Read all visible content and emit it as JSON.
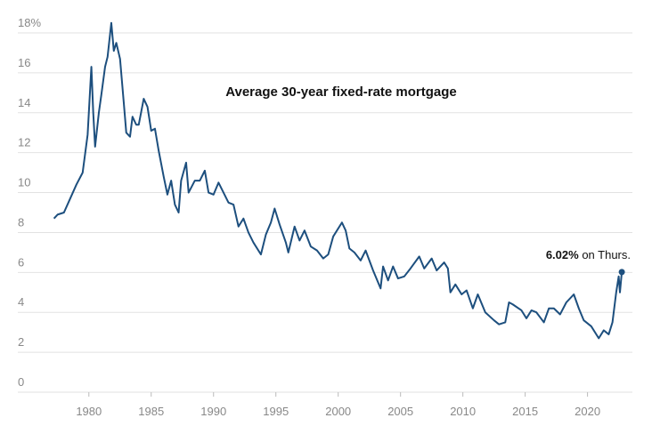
{
  "chart_data": {
    "type": "line",
    "title": "Average 30-year fixed-rate mortgage",
    "annotation_value": "6.02%",
    "annotation_text": "on Thurs.",
    "color": "#1d4f7e",
    "x": [
      1977.2,
      1977.5,
      1978.0,
      1978.5,
      1979.0,
      1979.5,
      1979.9,
      1980.2,
      1980.35,
      1980.5,
      1980.8,
      1981.0,
      1981.3,
      1981.5,
      1981.8,
      1982.0,
      1982.2,
      1982.5,
      1982.8,
      1983.0,
      1983.3,
      1983.5,
      1983.8,
      1984.0,
      1984.4,
      1984.7,
      1985.0,
      1985.3,
      1985.6,
      1986.0,
      1986.3,
      1986.6,
      1986.9,
      1987.2,
      1987.4,
      1987.8,
      1988.0,
      1988.5,
      1988.9,
      1989.3,
      1989.6,
      1990.0,
      1990.4,
      1990.8,
      1991.2,
      1991.6,
      1992.0,
      1992.4,
      1992.8,
      1993.2,
      1993.8,
      1994.2,
      1994.6,
      1994.9,
      1995.3,
      1995.8,
      1996.0,
      1996.5,
      1996.9,
      1997.3,
      1997.8,
      1998.3,
      1998.8,
      1999.2,
      1999.6,
      2000.3,
      2000.6,
      2000.9,
      2001.3,
      2001.8,
      2002.2,
      2002.8,
      2003.4,
      2003.6,
      2004.0,
      2004.4,
      2004.8,
      2005.3,
      2005.8,
      2006.5,
      2006.9,
      2007.5,
      2007.9,
      2008.5,
      2008.8,
      2009.0,
      2009.4,
      2009.9,
      2010.3,
      2010.8,
      2011.2,
      2011.8,
      2012.5,
      2012.9,
      2013.4,
      2013.7,
      2014.0,
      2014.7,
      2015.1,
      2015.5,
      2015.9,
      2016.5,
      2016.9,
      2017.3,
      2017.8,
      2018.3,
      2018.9,
      2019.3,
      2019.7,
      2020.3,
      2020.9,
      2021.3,
      2021.7,
      2022.0,
      2022.3,
      2022.5,
      2022.6,
      2022.75
    ],
    "values": [
      8.7,
      8.9,
      9.0,
      9.7,
      10.4,
      11.0,
      12.9,
      16.3,
      14.0,
      12.3,
      14.0,
      14.9,
      16.3,
      16.8,
      18.5,
      17.1,
      17.5,
      16.7,
      14.5,
      13.0,
      12.8,
      13.8,
      13.4,
      13.4,
      14.7,
      14.3,
      13.1,
      13.2,
      12.1,
      10.8,
      9.9,
      10.6,
      9.4,
      9.0,
      10.6,
      11.5,
      10.0,
      10.6,
      10.6,
      11.1,
      10.0,
      9.9,
      10.5,
      10.0,
      9.5,
      9.4,
      8.3,
      8.7,
      8.0,
      7.5,
      6.9,
      7.9,
      8.5,
      9.2,
      8.4,
      7.5,
      7.0,
      8.3,
      7.6,
      8.1,
      7.3,
      7.1,
      6.7,
      6.9,
      7.8,
      8.5,
      8.1,
      7.2,
      7.0,
      6.6,
      7.1,
      6.1,
      5.2,
      6.3,
      5.6,
      6.3,
      5.7,
      5.8,
      6.2,
      6.8,
      6.2,
      6.7,
      6.1,
      6.5,
      6.2,
      5.0,
      5.4,
      4.9,
      5.1,
      4.2,
      4.9,
      4.0,
      3.6,
      3.4,
      3.5,
      4.5,
      4.4,
      4.1,
      3.7,
      4.1,
      4.0,
      3.5,
      4.2,
      4.2,
      3.9,
      4.5,
      4.9,
      4.2,
      3.6,
      3.3,
      2.7,
      3.1,
      2.9,
      3.5,
      5.0,
      5.8,
      5.0,
      6.02
    ],
    "xlim": [
      1974.3,
      2023.6
    ],
    "xticks": [
      1980,
      1985,
      1990,
      1995,
      2000,
      2005,
      2010,
      2015,
      2020
    ],
    "ylim": [
      0,
      18
    ],
    "yticks": [
      0,
      2,
      4,
      6,
      8,
      10,
      12,
      14,
      16,
      {
        "value": 18,
        "label": "18%"
      }
    ],
    "grid": true
  }
}
